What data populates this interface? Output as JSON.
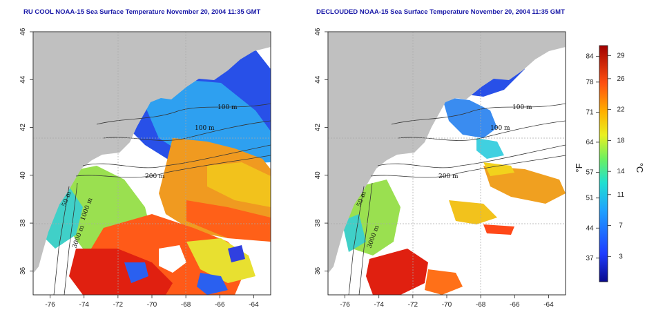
{
  "panels": [
    {
      "title": "RU COOL NOAA-15 Sea Surface Temperature November 20, 2004 11:35 GMT",
      "x_ticks": [
        "-76",
        "-74",
        "-72",
        "-70",
        "-68",
        "-66",
        "-64"
      ],
      "y_ticks": [
        "36",
        "38",
        "40",
        "42",
        "44",
        "46"
      ],
      "contour_labels": [
        "100 m",
        "100 m",
        "200 m",
        "50 m",
        "3000 m",
        "1000 m"
      ]
    },
    {
      "title": "DECLOUDED NOAA-15 Sea Surface Temperature November 20, 2004 11:35 GMT",
      "x_ticks": [
        "-76",
        "-74",
        "-72",
        "-70",
        "-68",
        "-66",
        "-64"
      ],
      "y_ticks": [
        "36",
        "38",
        "40",
        "42",
        "44",
        "46"
      ],
      "contour_labels": [
        "100 m",
        "100 m",
        "200 m",
        "50 m",
        "3000 m"
      ]
    }
  ],
  "colorbar": {
    "unit_left": "°F",
    "unit_right": "°C",
    "fahrenheit_ticks": [
      "84",
      "78",
      "71",
      "64",
      "57",
      "51",
      "44",
      "37"
    ],
    "celsius_ticks": [
      "29",
      "26",
      "22",
      "18",
      "14",
      "11",
      "7",
      "3"
    ]
  },
  "colors": {
    "land": "#c0c0c0",
    "title": "#1a1aa8",
    "grid": "#a8a8a8"
  }
}
